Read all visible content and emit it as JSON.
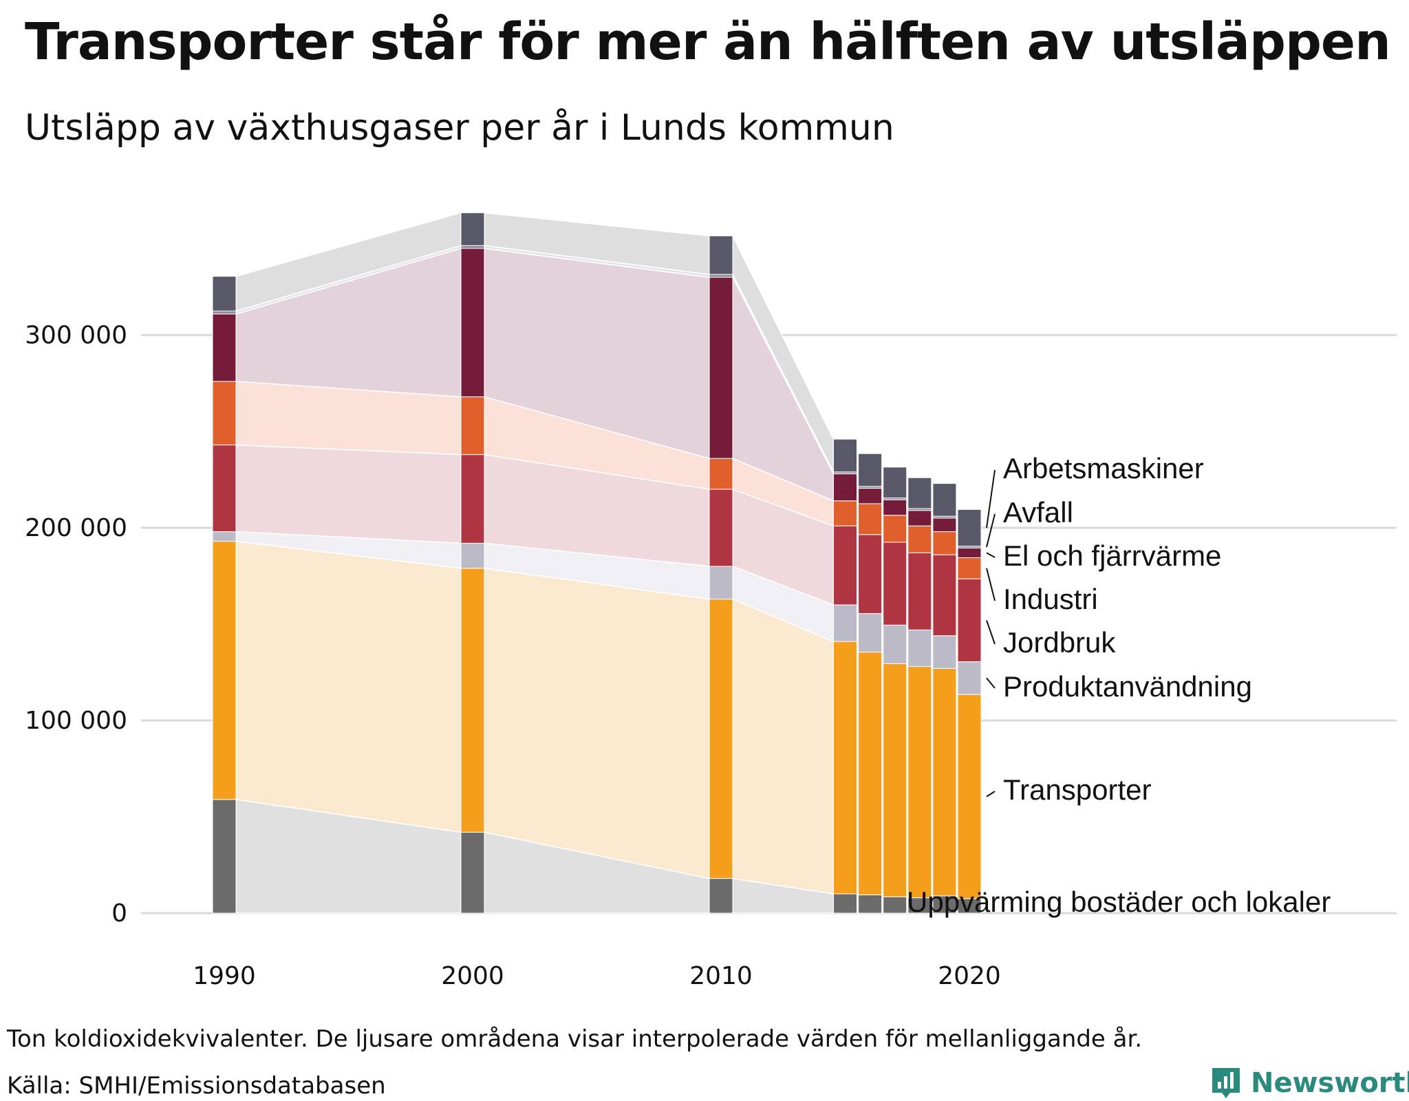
{
  "title": "Transporter står för mer än hälften av utsläppen",
  "subtitle": "Utsläpp av växthusgaser per år i Lunds kommun",
  "footnote": "Ton koldioxidekvivalenter. De ljusare områdena visar interpolerade värden för mellanliggande år.",
  "source": "Källa: SMHI/Emissionsdatabasen",
  "brand": "Newsworthy",
  "brand_icon": "newsworthy-logo-icon",
  "chart_data": {
    "type": "bar",
    "stacked": true,
    "x": [
      1990,
      2000,
      2010,
      2015,
      2016,
      2017,
      2018,
      2019,
      2020
    ],
    "ylim": [
      0,
      370000
    ],
    "yticks": [
      0,
      100000,
      200000,
      300000
    ],
    "ytick_labels": [
      "0",
      "100 000",
      "200 000",
      "300 000"
    ],
    "xticks": [
      1990,
      2000,
      2010,
      2020
    ],
    "xtick_labels": [
      "1990",
      "2000",
      "2010",
      "2020"
    ],
    "grid": true,
    "legend": "right, inline labels at last bar",
    "series": [
      {
        "name": "Uppvärming bostäder och lokaler",
        "color": "#6b6b6b",
        "area_color": "#e0e0e0",
        "values": [
          59000,
          42000,
          18000,
          10000,
          9500,
          8500,
          8000,
          9000,
          7500
        ]
      },
      {
        "name": "Transporter",
        "color": "#f59e1b",
        "area_color": "#fbe9cf",
        "values": [
          134000,
          137000,
          145000,
          131000,
          126000,
          121000,
          120000,
          118000,
          106000
        ]
      },
      {
        "name": "Produktanvändning",
        "color": "#bdbac8",
        "area_color": "#f0eff3",
        "values": [
          5000,
          13000,
          17000,
          19000,
          20000,
          20000,
          19000,
          17000,
          17000
        ]
      },
      {
        "name": "Jordbruk",
        "color": "#b03543",
        "area_color": "#f0d9dd",
        "values": [
          45000,
          46000,
          40000,
          41000,
          41000,
          43000,
          40000,
          42000,
          43000
        ]
      },
      {
        "name": "Industri",
        "color": "#e05f2b",
        "area_color": "#fbe1d8",
        "values": [
          33000,
          30000,
          16000,
          13000,
          16000,
          14000,
          14000,
          12000,
          11000
        ]
      },
      {
        "name": "El och fjärrvärme",
        "color": "#751c3a",
        "area_color": "#e3d2d9",
        "values": [
          35000,
          77000,
          94000,
          14000,
          8000,
          8000,
          8000,
          7000,
          5000
        ]
      },
      {
        "name": "Avfall",
        "color": "#8a8894",
        "area_color": "#e4e3e8",
        "values": [
          1500,
          1500,
          1500,
          1000,
          1000,
          1000,
          1000,
          1000,
          1000
        ]
      },
      {
        "name": "Arbetsmaskiner",
        "color": "#595868",
        "area_color": "#dededf",
        "values": [
          18000,
          17000,
          20000,
          17000,
          17000,
          16000,
          16000,
          17000,
          19000
        ]
      }
    ]
  }
}
